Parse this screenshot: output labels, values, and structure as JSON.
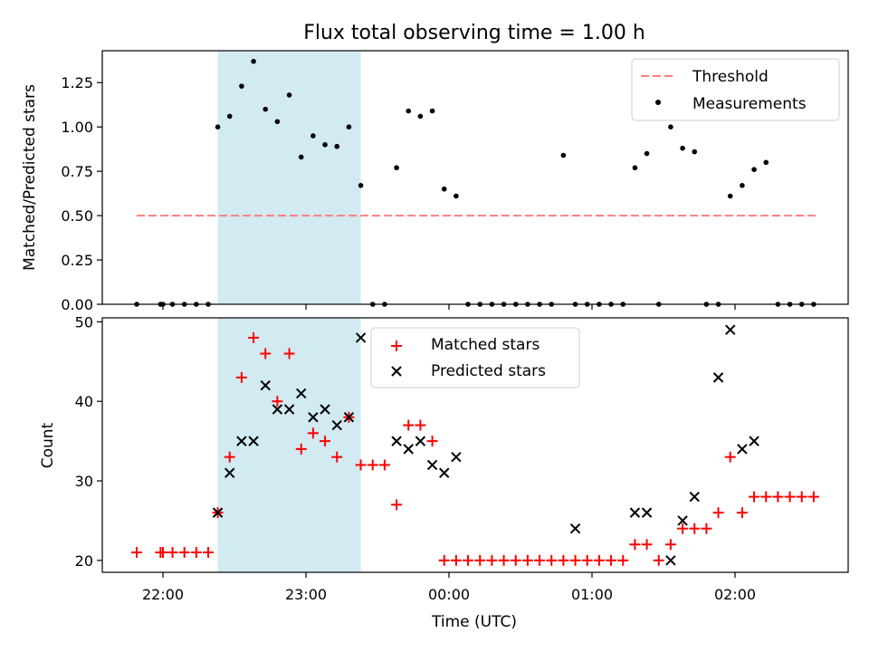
{
  "title": "Flux total observing time = 1.00 h",
  "xlabel": "Time (UTC)",
  "colors": {
    "threshold": "#ff7f7f",
    "matched": "#ff0000",
    "predicted": "#000000",
    "band": "#add8e6"
  },
  "chart_data": [
    {
      "type": "scatter",
      "ylabel": "Matched/Predicted stars",
      "ylim": [
        0,
        1.43
      ],
      "yticks": [
        0,
        0.25,
        0.5,
        0.75,
        1.0,
        1.25
      ],
      "ytick_labels": [
        "0.00",
        "0.25",
        "0.50",
        "0.75",
        "1.00",
        "1.25"
      ],
      "xticks": [
        "22:00",
        "23:00",
        "00:00",
        "01:00",
        "02:00"
      ],
      "legend": {
        "position": "top-right",
        "entries": [
          "Threshold",
          "Measurements"
        ]
      },
      "highlight": {
        "x_start": "22:23",
        "x_end": "23:23"
      },
      "threshold": {
        "name": "Threshold",
        "y": 0.5,
        "x_start": "21:49",
        "x_end": "02:34"
      },
      "measurements": {
        "name": "Measurements",
        "x": [
          "21:49",
          "21:59",
          "22:00",
          "22:04",
          "22:09",
          "22:14",
          "22:19",
          "22:23",
          "22:28",
          "22:33",
          "22:38",
          "22:43",
          "22:48",
          "22:53",
          "22:58",
          "23:03",
          "23:08",
          "23:13",
          "23:18",
          "23:23",
          "23:28",
          "23:33",
          "23:38",
          "23:43",
          "23:48",
          "23:53",
          "23:58",
          "00:03",
          "00:08",
          "00:13",
          "00:18",
          "00:23",
          "00:28",
          "00:33",
          "00:38",
          "00:43",
          "00:48",
          "00:53",
          "00:58",
          "01:03",
          "01:08",
          "01:13",
          "01:18",
          "01:23",
          "01:28",
          "01:33",
          "01:38",
          "01:43",
          "01:48",
          "01:53",
          "01:58",
          "02:03",
          "02:08",
          "02:13",
          "02:18",
          "02:23",
          "02:28",
          "02:33"
        ],
        "y": [
          0,
          0,
          0,
          0,
          0,
          0,
          0,
          1.0,
          1.06,
          1.23,
          1.37,
          1.1,
          1.03,
          1.18,
          0.83,
          0.95,
          0.9,
          0.89,
          1.0,
          0.67,
          0,
          0,
          0.77,
          1.09,
          1.06,
          1.09,
          0.65,
          0.61,
          0,
          0,
          0,
          0,
          0,
          0,
          0,
          0,
          0.84,
          0,
          0,
          0,
          0,
          0,
          0.77,
          0.85,
          0,
          1.0,
          0.88,
          0.86,
          0,
          0,
          0.61,
          0.67,
          0.76,
          0.8,
          0,
          0,
          0,
          0
        ]
      }
    },
    {
      "type": "scatter",
      "ylabel": "Count",
      "ylim": [
        18.5,
        50.5
      ],
      "yticks": [
        20,
        30,
        40,
        50
      ],
      "ytick_labels": [
        "20",
        "30",
        "40",
        "50"
      ],
      "xticks": [
        "22:00",
        "23:00",
        "00:00",
        "01:00",
        "02:00"
      ],
      "legend": {
        "position": "top-center",
        "entries": [
          "Matched stars",
          "Predicted stars"
        ]
      },
      "highlight": {
        "x_start": "22:23",
        "x_end": "23:23"
      },
      "series": [
        {
          "name": "Matched stars",
          "marker": "plus",
          "x": [
            "21:49",
            "21:59",
            "22:00",
            "22:04",
            "22:09",
            "22:14",
            "22:19",
            "22:23",
            "22:28",
            "22:33",
            "22:38",
            "22:43",
            "22:48",
            "22:53",
            "22:58",
            "23:03",
            "23:08",
            "23:13",
            "23:18",
            "23:23",
            "23:28",
            "23:33",
            "23:38",
            "23:43",
            "23:48",
            "23:53",
            "23:58",
            "00:03",
            "00:08",
            "00:13",
            "00:18",
            "00:23",
            "00:28",
            "00:33",
            "00:38",
            "00:43",
            "00:48",
            "00:53",
            "00:58",
            "01:03",
            "01:08",
            "01:13",
            "01:18",
            "01:23",
            "01:28",
            "01:33",
            "01:38",
            "01:43",
            "01:48",
            "01:53",
            "01:58",
            "02:03",
            "02:08",
            "02:13",
            "02:18",
            "02:23",
            "02:28",
            "02:33"
          ],
          "y": [
            21,
            21,
            21,
            21,
            21,
            21,
            21,
            26,
            33,
            43,
            48,
            46,
            40,
            46,
            34,
            36,
            35,
            33,
            38,
            32,
            32,
            32,
            27,
            37,
            37,
            35,
            20,
            20,
            20,
            20,
            20,
            20,
            20,
            20,
            20,
            20,
            20,
            20,
            20,
            20,
            20,
            20,
            22,
            22,
            20,
            22,
            24,
            24,
            24,
            26,
            33,
            26,
            28,
            28,
            28,
            28,
            28,
            28
          ]
        },
        {
          "name": "Predicted stars",
          "marker": "x",
          "x": [
            "22:23",
            "22:28",
            "22:33",
            "22:38",
            "22:43",
            "22:48",
            "22:53",
            "22:58",
            "23:03",
            "23:08",
            "23:13",
            "23:18",
            "23:23",
            "23:38",
            "23:43",
            "23:48",
            "23:53",
            "23:58",
            "00:03",
            "00:53",
            "01:18",
            "01:23",
            "01:33",
            "01:38",
            "01:43",
            "01:53",
            "01:58",
            "02:03",
            "02:08"
          ],
          "y": [
            26,
            31,
            35,
            35,
            42,
            39,
            39,
            41,
            38,
            39,
            37,
            38,
            48,
            35,
            34,
            35,
            32,
            31,
            33,
            24,
            26,
            26,
            20,
            25,
            28,
            43,
            49,
            34,
            35
          ]
        }
      ]
    }
  ]
}
